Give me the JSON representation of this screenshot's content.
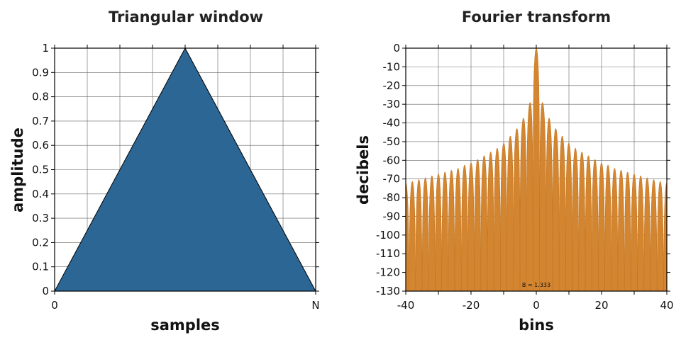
{
  "chart_data": [
    {
      "type": "area",
      "title": "Triangular window",
      "xlabel": "samples",
      "ylabel": "amplitude",
      "x_ticks": [
        "0",
        "N"
      ],
      "y_ticks": [
        "0",
        "0.1",
        "0.2",
        "0.3",
        "0.4",
        "0.5",
        "0.6",
        "0.7",
        "0.8",
        "0.9",
        "1"
      ],
      "ylim": [
        0,
        1
      ],
      "grid": true,
      "color": "#2b6695",
      "points": [
        {
          "x": 0,
          "y": 0
        },
        {
          "x": 0.5,
          "y": 1
        },
        {
          "x": 1,
          "y": 0
        }
      ]
    },
    {
      "type": "area",
      "title": "Fourier transform",
      "xlabel": "bins",
      "ylabel": "decibels",
      "xlim": [
        -40,
        40
      ],
      "ylim": [
        -130,
        0
      ],
      "x_ticks": [
        "-40",
        "-20",
        "0",
        "20",
        "40"
      ],
      "y_ticks": [
        "0",
        "-10",
        "-20",
        "-30",
        "-40",
        "-50",
        "-60",
        "-70",
        "-80",
        "-90",
        "-100",
        "-110",
        "-120",
        "-130"
      ],
      "grid": true,
      "color": "#d38530",
      "annotation": "B = 1.333",
      "sidelobe_peaks_db": [
        {
          "bin": 1.5,
          "db": -27
        },
        {
          "bin": 3.5,
          "db": -36
        },
        {
          "bin": 5.5,
          "db": -42
        },
        {
          "bin": 7.5,
          "db": -46
        },
        {
          "bin": 9.5,
          "db": -50
        },
        {
          "bin": 11.5,
          "db": -53
        },
        {
          "bin": 13.5,
          "db": -55
        },
        {
          "bin": 15.5,
          "db": -57
        },
        {
          "bin": 17.5,
          "db": -59
        },
        {
          "bin": 19.5,
          "db": -61
        },
        {
          "bin": 21.5,
          "db": -62
        },
        {
          "bin": 23.5,
          "db": -64
        },
        {
          "bin": 25.5,
          "db": -65
        },
        {
          "bin": 27.5,
          "db": -66
        },
        {
          "bin": 29.5,
          "db": -67
        },
        {
          "bin": 31.5,
          "db": -68
        },
        {
          "bin": 33.5,
          "db": -69
        },
        {
          "bin": 35.5,
          "db": -70
        },
        {
          "bin": 37.5,
          "db": -71
        },
        {
          "bin": 39.5,
          "db": -72
        }
      ]
    }
  ]
}
